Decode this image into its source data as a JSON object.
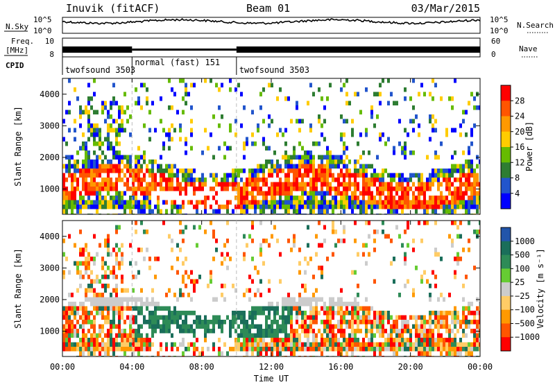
{
  "header": {
    "radar": "Inuvik (fitACF)",
    "beam": "Beam 01",
    "date": "03/Mar/2015"
  },
  "noise_panel": {
    "left_label": "N.Sky",
    "right_label": "N.Search",
    "tick_top": "10^5",
    "tick_bottom": "10^0"
  },
  "freq_panel": {
    "left_label_1": "Freq.",
    "left_label_2": "[MHz]",
    "right_label": "Nave",
    "left_ticks": [
      "10",
      "8"
    ],
    "right_ticks": [
      "60",
      "0"
    ]
  },
  "cpid_panel": {
    "label": "CPID",
    "segments": [
      {
        "name": "twofsound 3503",
        "start_hour": 0,
        "end_hour": 4
      },
      {
        "name": "normal (fast) 151",
        "start_hour": 4,
        "end_hour": 10
      },
      {
        "name": "twofsound 3503",
        "start_hour": 10,
        "end_hour": 24
      }
    ]
  },
  "colors": {
    "power_scale": [
      "#0000ff",
      "#2255cc",
      "#2e7d32",
      "#66bb00",
      "#ffcc00",
      "#ff9900",
      "#ff5500",
      "#ff0000"
    ],
    "velocity_scale": [
      "#ff0000",
      "#ff5500",
      "#ff9900",
      "#ffcc66",
      "#cccccc",
      "#66cc33",
      "#2e8b57",
      "#1a6e5a",
      "#2255aa"
    ]
  },
  "chart_data": [
    {
      "type": "heatmap",
      "panel": "power",
      "ylabel": "Slant Range [km]",
      "y_ticks": [
        "1000",
        "2000",
        "3000",
        "4000"
      ],
      "ylim": [
        200,
        4500
      ],
      "xlim": [
        0,
        24
      ],
      "colorbar": {
        "label": "Power [dB]",
        "ticks": [
          "4",
          "8",
          "12",
          "16",
          "20",
          "24",
          "28"
        ],
        "range": [
          0,
          32
        ]
      }
    },
    {
      "type": "heatmap",
      "panel": "velocity",
      "ylabel": "Slant Range [km]",
      "y_ticks": [
        "1000",
        "2000",
        "3000",
        "4000"
      ],
      "ylim": [
        200,
        4500
      ],
      "xlim": [
        0,
        24
      ],
      "colorbar": {
        "label": "Velocity [m s⁻¹]",
        "ticks": [
          "1000",
          "500",
          "100",
          "25",
          "−25",
          "−100",
          "−500",
          "−1000"
        ]
      }
    }
  ],
  "x_axis": {
    "label": "Time UT",
    "ticks": [
      "00:00",
      "04:00",
      "08:00",
      "12:00",
      "16:00",
      "20:00",
      "00:00"
    ],
    "tick_hours": [
      0,
      4,
      8,
      12,
      16,
      20,
      24
    ]
  }
}
